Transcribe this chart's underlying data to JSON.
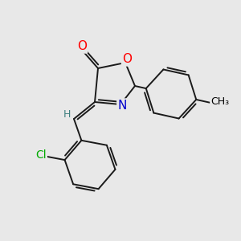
{
  "bg_color": "#e8e8e8",
  "atom_colors": {
    "O": "#ff0000",
    "N": "#0000cd",
    "Cl": "#00aa00",
    "C": "#000000",
    "H": "#408080"
  },
  "bond_color": "#1a1a1a",
  "bond_width": 1.4,
  "fig_size": [
    3.0,
    3.0
  ],
  "dpi": 100
}
